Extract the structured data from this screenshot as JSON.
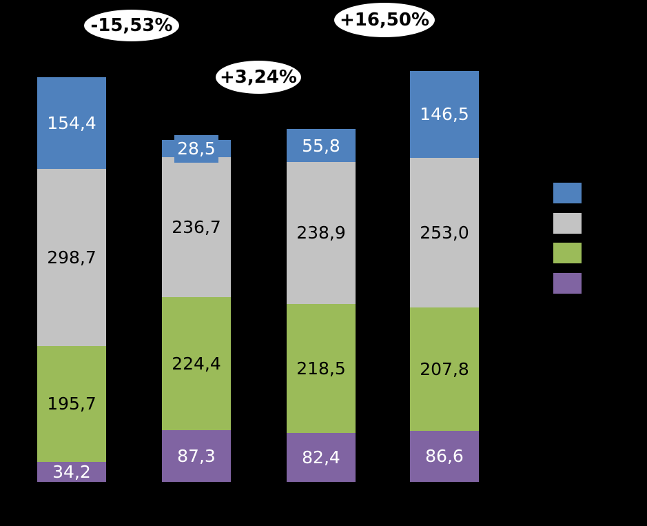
{
  "background_color": "#000000",
  "chart_data": {
    "type": "bar",
    "stacked": true,
    "orientation": "vertical",
    "bar_count": 4,
    "categories": [
      "",
      "",
      "",
      ""
    ],
    "category_axis_visible": false,
    "value_axis_visible": false,
    "grid": false,
    "series": [
      {
        "color_name": "blue",
        "color": "#4F81BD",
        "values": [
          154.4,
          28.5,
          55.8,
          146.5
        ],
        "labels": [
          "154,4",
          "28,5",
          "55,8",
          "146,5"
        ],
        "label_color": "#ffffff",
        "boxed_labels": [
          false,
          true,
          false,
          false
        ]
      },
      {
        "color_name": "gray",
        "color": "#C3C3C3",
        "values": [
          298.7,
          236.7,
          238.9,
          253.0
        ],
        "labels": [
          "298,7",
          "236,7",
          "238,9",
          "253,0"
        ],
        "label_color": "#000000",
        "boxed_labels": [
          false,
          false,
          false,
          false
        ]
      },
      {
        "color_name": "green",
        "color": "#9BBB59",
        "values": [
          195.7,
          224.4,
          218.5,
          207.8
        ],
        "labels": [
          "195,7",
          "224,4",
          "218,5",
          "207,8"
        ],
        "label_color": "#000000",
        "boxed_labels": [
          false,
          false,
          false,
          false
        ]
      },
      {
        "color_name": "purple",
        "color": "#8064A2",
        "values": [
          34.2,
          87.3,
          82.4,
          86.6
        ],
        "labels": [
          "34,2",
          "87,3",
          "82,4",
          "86,6"
        ],
        "label_color": "#ffffff",
        "boxed_labels": [
          false,
          false,
          false,
          false
        ]
      }
    ],
    "annotations": [
      {
        "text": "-15,53%",
        "between_bars": [
          1,
          2
        ],
        "shape": "ellipse",
        "fill": "#ffffff",
        "text_color": "#000000"
      },
      {
        "text": "+3,24%",
        "between_bars": [
          2,
          3
        ],
        "shape": "ellipse",
        "fill": "#ffffff",
        "text_color": "#000000"
      },
      {
        "text": "+16,50%",
        "between_bars": [
          3,
          4
        ],
        "shape": "ellipse",
        "fill": "#ffffff",
        "text_color": "#000000"
      }
    ],
    "legend": {
      "position": "right",
      "labels_visible": false,
      "swatch_colors": [
        "#4F81BD",
        "#C3C3C3",
        "#9BBB59",
        "#8064A2"
      ]
    }
  }
}
